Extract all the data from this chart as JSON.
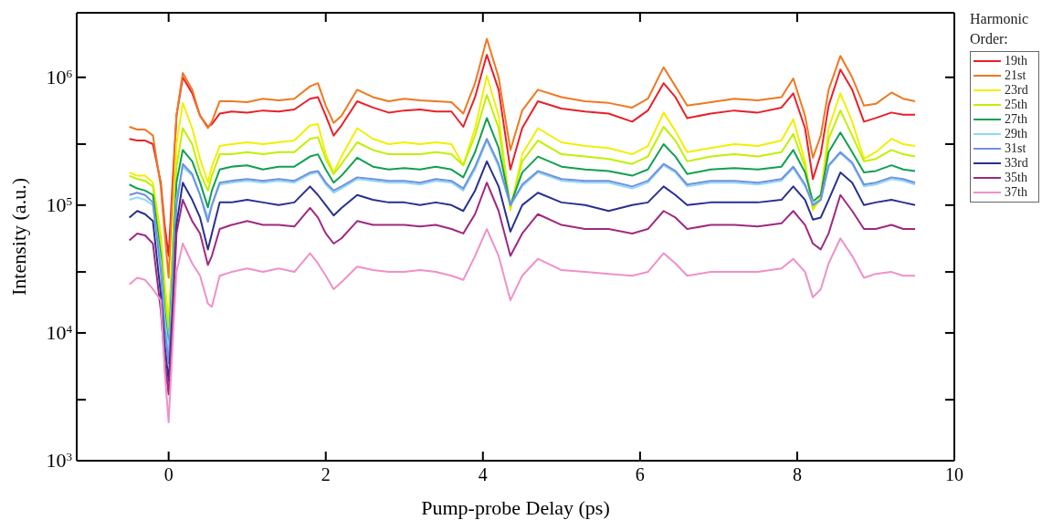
{
  "chart_data": {
    "type": "line",
    "xlabel": "Pump-probe Delay (ps)",
    "ylabel": "Intensity (a.u.)",
    "legend_title": "Harmonic Order:",
    "legend": "top right",
    "log": "y",
    "line_style": "solid",
    "marker": "none",
    "xlim": [
      -1.17,
      10
    ],
    "xticks": [
      0,
      2,
      4,
      6,
      8,
      10
    ],
    "ylim": [
      1000,
      3200000
    ],
    "yticks": [
      {
        "value": 1000,
        "label": "10$^{3}$"
      },
      {
        "value": 3000,
        "label": null
      },
      {
        "value": 10000,
        "label": "10$^{4}$"
      },
      {
        "value": 30000,
        "label": null
      },
      {
        "value": 100000,
        "label": "10$^{5}$"
      },
      {
        "value": 300000,
        "label": null
      },
      {
        "value": 1000000,
        "label": "10$^{6}$"
      }
    ],
    "x": [
      -0.5,
      -0.4,
      -0.3,
      -0.2,
      -0.1,
      -0.05,
      0,
      0.05,
      0.1,
      0.18,
      0.3,
      0.4,
      0.5,
      0.55,
      0.65,
      0.8,
      1.0,
      1.2,
      1.4,
      1.6,
      1.8,
      1.9,
      2.0,
      2.1,
      2.2,
      2.4,
      2.6,
      2.8,
      3.0,
      3.2,
      3.4,
      3.6,
      3.75,
      3.9,
      4.05,
      4.2,
      4.35,
      4.5,
      4.7,
      5.0,
      5.3,
      5.6,
      5.9,
      6.1,
      6.3,
      6.45,
      6.6,
      6.9,
      7.2,
      7.5,
      7.8,
      7.95,
      8.1,
      8.2,
      8.3,
      8.4,
      8.55,
      8.7,
      8.85,
      9.0,
      9.2,
      9.35,
      9.5
    ],
    "series": [
      {
        "name": "19th",
        "color": "#e8202a",
        "values": [
          330000.0,
          320000.0,
          320000.0,
          300000.0,
          150000.0,
          70000.0,
          40000.0,
          150000.0,
          500000.0,
          1000000.0,
          750000.0,
          500000.0,
          410000.0,
          430000.0,
          520000.0,
          540000.0,
          530000.0,
          550000.0,
          540000.0,
          560000.0,
          680000.0,
          700000.0,
          500000.0,
          350000.0,
          420000.0,
          650000.0,
          580000.0,
          530000.0,
          550000.0,
          560000.0,
          540000.0,
          540000.0,
          410000.0,
          700000.0,
          1500000.0,
          800000.0,
          190000.0,
          400000.0,
          650000.0,
          570000.0,
          540000.0,
          520000.0,
          450000.0,
          550000.0,
          900000.0,
          700000.0,
          480000.0,
          520000.0,
          550000.0,
          530000.0,
          580000.0,
          750000.0,
          400000.0,
          160000.0,
          250000.0,
          600000.0,
          1150000.0,
          800000.0,
          450000.0,
          480000.0,
          530000.0,
          510000.0,
          510000.0
        ]
      },
      {
        "name": "21st",
        "color": "#f07820",
        "values": [
          410000.0,
          390000.0,
          390000.0,
          350000.0,
          140000.0,
          60000.0,
          27000.0,
          120000.0,
          500000.0,
          1080000.0,
          800000.0,
          500000.0,
          400000.0,
          450000.0,
          650000.0,
          650000.0,
          640000.0,
          680000.0,
          660000.0,
          680000.0,
          850000.0,
          900000.0,
          600000.0,
          440000.0,
          500000.0,
          800000.0,
          700000.0,
          650000.0,
          680000.0,
          660000.0,
          650000.0,
          640000.0,
          520000.0,
          900000.0,
          2000000.0,
          1000000.0,
          270000.0,
          550000.0,
          800000.0,
          700000.0,
          650000.0,
          630000.0,
          580000.0,
          680000.0,
          1200000.0,
          850000.0,
          600000.0,
          640000.0,
          680000.0,
          660000.0,
          700000.0,
          980000.0,
          500000.0,
          235000.0,
          350000.0,
          800000.0,
          1470000.0,
          1000000.0,
          600000.0,
          620000.0,
          760000.0,
          680000.0,
          650000.0
        ]
      },
      {
        "name": "23rd",
        "color": "#f2ef00",
        "values": [
          180000.0,
          170000.0,
          170000.0,
          150000.0,
          60000.0,
          25000.0,
          12500.0,
          50000.0,
          300000.0,
          630000.0,
          400000.0,
          230000.0,
          150000.0,
          200000.0,
          290000.0,
          300000.0,
          310000.0,
          300000.0,
          310000.0,
          320000.0,
          420000.0,
          430000.0,
          250000.0,
          180000.0,
          240000.0,
          400000.0,
          330000.0,
          300000.0,
          310000.0,
          300000.0,
          310000.0,
          300000.0,
          205000.0,
          400000.0,
          1030000.0,
          500000.0,
          91000.0,
          250000.0,
          400000.0,
          310000.0,
          290000.0,
          280000.0,
          250000.0,
          290000.0,
          530000.0,
          380000.0,
          260000.0,
          280000.0,
          300000.0,
          290000.0,
          320000.0,
          470000.0,
          220000.0,
          91000.0,
          120000.0,
          400000.0,
          750000.0,
          450000.0,
          230000.0,
          260000.0,
          330000.0,
          300000.0,
          290000.0
        ]
      },
      {
        "name": "25th",
        "color": "#c0f000",
        "values": [
          170000.0,
          160000.0,
          155000.0,
          140000.0,
          50000.0,
          20000.0,
          10500.0,
          40000.0,
          200000.0,
          400000.0,
          300000.0,
          180000.0,
          130000.0,
          170000.0,
          250000.0,
          250000.0,
          260000.0,
          250000.0,
          260000.0,
          260000.0,
          330000.0,
          340000.0,
          230000.0,
          175000.0,
          210000.0,
          310000.0,
          270000.0,
          250000.0,
          250000.0,
          250000.0,
          260000.0,
          250000.0,
          205000.0,
          350000.0,
          730000.0,
          400000.0,
          95000.0,
          220000.0,
          320000.0,
          250000.0,
          240000.0,
          230000.0,
          210000.0,
          240000.0,
          410000.0,
          320000.0,
          220000.0,
          240000.0,
          250000.0,
          240000.0,
          260000.0,
          360000.0,
          200000.0,
          95000.0,
          110000.0,
          330000.0,
          550000.0,
          350000.0,
          220000.0,
          230000.0,
          270000.0,
          250000.0,
          240000.0
        ]
      },
      {
        "name": "27th",
        "color": "#10a050",
        "values": [
          145000.0,
          135000.0,
          130000.0,
          120000.0,
          40000.0,
          15000.0,
          7700.0,
          30000.0,
          150000.0,
          270000.0,
          220000.0,
          150000.0,
          96000.0,
          130000.0,
          190000.0,
          200000.0,
          205000.0,
          190000.0,
          200000.0,
          200000.0,
          240000.0,
          250000.0,
          190000.0,
          150000.0,
          170000.0,
          235000.0,
          200000.0,
          190000.0,
          195000.0,
          190000.0,
          200000.0,
          190000.0,
          165000.0,
          260000.0,
          480000.0,
          280000.0,
          100000.0,
          180000.0,
          240000.0,
          200000.0,
          190000.0,
          185000.0,
          170000.0,
          190000.0,
          300000.0,
          240000.0,
          175000.0,
          190000.0,
          195000.0,
          190000.0,
          200000.0,
          270000.0,
          180000.0,
          107000.0,
          120000.0,
          260000.0,
          370000.0,
          260000.0,
          180000.0,
          185000.0,
          205000.0,
          190000.0,
          185000.0
        ]
      },
      {
        "name": "29th",
        "color": "#90d8f8",
        "values": [
          110000.0,
          115000.0,
          110000.0,
          100000.0,
          35000.0,
          13000.0,
          7000.0,
          25000.0,
          110000.0,
          200000.0,
          170000.0,
          120000.0,
          80000.0,
          100000.0,
          145000.0,
          150000.0,
          155000.0,
          150000.0,
          155000.0,
          150000.0,
          175000.0,
          180000.0,
          145000.0,
          125000.0,
          135000.0,
          160000.0,
          155000.0,
          150000.0,
          150000.0,
          145000.0,
          155000.0,
          150000.0,
          130000.0,
          190000.0,
          320000.0,
          200000.0,
          100000.0,
          140000.0,
          180000.0,
          155000.0,
          150000.0,
          150000.0,
          135000.0,
          150000.0,
          205000.0,
          180000.0,
          140000.0,
          150000.0,
          150000.0,
          145000.0,
          155000.0,
          195000.0,
          140000.0,
          105000.0,
          110000.0,
          200000.0,
          255000.0,
          210000.0,
          140000.0,
          145000.0,
          160000.0,
          155000.0,
          145000.0
        ]
      },
      {
        "name": "31st",
        "color": "#7090e0",
        "values": [
          120000.0,
          125000.0,
          120000.0,
          105000.0,
          30000.0,
          11000.0,
          5800.0,
          20000.0,
          100000.0,
          210000.0,
          175000.0,
          120000.0,
          74000.0,
          100000.0,
          150000.0,
          155000.0,
          160000.0,
          155000.0,
          160000.0,
          155000.0,
          180000.0,
          185000.0,
          150000.0,
          130000.0,
          140000.0,
          165000.0,
          160000.0,
          155000.0,
          155000.0,
          150000.0,
          160000.0,
          155000.0,
          135000.0,
          200000.0,
          330000.0,
          210000.0,
          100000.0,
          145000.0,
          185000.0,
          160000.0,
          155000.0,
          155000.0,
          140000.0,
          155000.0,
          210000.0,
          185000.0,
          145000.0,
          155000.0,
          155000.0,
          150000.0,
          160000.0,
          200000.0,
          145000.0,
          100000.0,
          110000.0,
          205000.0,
          260000.0,
          215000.0,
          145000.0,
          150000.0,
          165000.0,
          160000.0,
          150000.0
        ]
      },
      {
        "name": "33rd",
        "color": "#283090",
        "values": [
          80000.0,
          90000.0,
          85000.0,
          75000.0,
          20000.0,
          8000.0,
          4200.0,
          15000.0,
          70000.0,
          150000.0,
          110000.0,
          80000.0,
          45000.0,
          60000.0,
          105000.0,
          105000.0,
          110000.0,
          105000.0,
          100000.0,
          105000.0,
          140000.0,
          120000.0,
          100000.0,
          83000.0,
          95000.0,
          120000.0,
          110000.0,
          105000.0,
          105000.0,
          100000.0,
          105000.0,
          100000.0,
          90000.0,
          130000.0,
          220000.0,
          140000.0,
          62000.0,
          100000.0,
          125000.0,
          105000.0,
          100000.0,
          90000.0,
          100000.0,
          105000.0,
          140000.0,
          120000.0,
          100000.0,
          105000.0,
          105000.0,
          105000.0,
          110000.0,
          140000.0,
          110000.0,
          77000.0,
          80000.0,
          110000.0,
          180000.0,
          150000.0,
          100000.0,
          105000.0,
          110000.0,
          105000.0,
          100000.0
        ]
      },
      {
        "name": "35th",
        "color": "#a02880",
        "values": [
          53000.0,
          60000.0,
          58000.0,
          50000.0,
          15000.0,
          6000.0,
          3300.0,
          12000.0,
          60000.0,
          110000.0,
          75000.0,
          60000.0,
          34000.0,
          40000.0,
          65000.0,
          70000.0,
          75000.0,
          70000.0,
          70000.0,
          68000.0,
          95000.0,
          80000.0,
          60000.0,
          50000.0,
          55000.0,
          75000.0,
          70000.0,
          70000.0,
          70000.0,
          68000.0,
          70000.0,
          65000.0,
          60000.0,
          85000.0,
          150000.0,
          90000.0,
          40000.0,
          60000.0,
          85000.0,
          70000.0,
          65000.0,
          65000.0,
          60000.0,
          65000.0,
          90000.0,
          80000.0,
          65000.0,
          70000.0,
          70000.0,
          68000.0,
          72000.0,
          90000.0,
          70000.0,
          50000.0,
          45000.0,
          60000.0,
          120000.0,
          90000.0,
          65000.0,
          65000.0,
          70000.0,
          65000.0,
          65000.0
        ]
      },
      {
        "name": "37th",
        "color": "#f090c8",
        "values": [
          24000.0,
          27000.0,
          26000.0,
          22000.0,
          18000.0,
          5000.0,
          2000.0,
          8000.0,
          30000.0,
          50000.0,
          35000.0,
          28000.0,
          17000.0,
          16000.0,
          28000.0,
          30000.0,
          32000.0,
          30000.0,
          32000.0,
          30000.0,
          42000.0,
          35000.0,
          28000.0,
          22000.0,
          25000.0,
          33000.0,
          31000.0,
          30000.0,
          30000.0,
          31000.0,
          30000.0,
          28000.0,
          26000.0,
          40000.0,
          65000.0,
          40000.0,
          18000.0,
          28000.0,
          38000.0,
          31000.0,
          30000.0,
          29000.0,
          28000.0,
          30000.0,
          42000.0,
          35000.0,
          28000.0,
          30000.0,
          30000.0,
          30000.0,
          32000.0,
          38000.0,
          30000.0,
          19000.0,
          22000.0,
          35000.0,
          55000.0,
          40000.0,
          27000.0,
          29000.0,
          30000.0,
          28000.0,
          28000.0
        ]
      }
    ]
  }
}
